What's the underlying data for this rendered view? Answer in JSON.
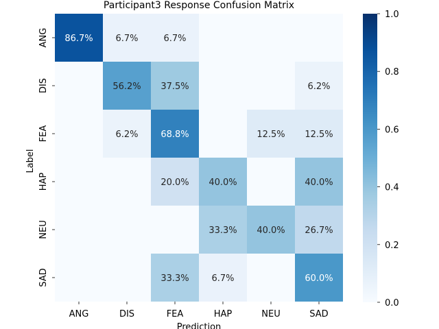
{
  "chart_data": {
    "type": "heatmap",
    "title": "Participant3 Response Confusion Matrix",
    "xlabel": "Prediction",
    "ylabel": "Label",
    "x_categories": [
      "ANG",
      "DIS",
      "FEA",
      "HAP",
      "NEU",
      "SAD"
    ],
    "y_categories": [
      "ANG",
      "DIS",
      "FEA",
      "HAP",
      "NEU",
      "SAD"
    ],
    "values": [
      [
        0.867,
        0.067,
        0.067,
        0.0,
        0.0,
        0.0
      ],
      [
        0.0,
        0.562,
        0.375,
        0.0,
        0.0,
        0.062
      ],
      [
        0.0,
        0.062,
        0.688,
        0.0,
        0.125,
        0.125
      ],
      [
        0.0,
        0.0,
        0.2,
        0.4,
        0.0,
        0.4
      ],
      [
        0.0,
        0.0,
        0.0,
        0.333,
        0.4,
        0.267
      ],
      [
        0.0,
        0.0,
        0.333,
        0.067,
        0.0,
        0.6
      ]
    ],
    "cell_labels": [
      [
        "86.7%",
        "6.7%",
        "6.7%",
        "",
        "",
        ""
      ],
      [
        "",
        "56.2%",
        "37.5%",
        "",
        "",
        "6.2%"
      ],
      [
        "",
        "6.2%",
        "68.8%",
        "",
        "12.5%",
        "12.5%"
      ],
      [
        "",
        "",
        "20.0%",
        "40.0%",
        "",
        "40.0%"
      ],
      [
        "",
        "",
        "",
        "33.3%",
        "40.0%",
        "26.7%"
      ],
      [
        "",
        "",
        "33.3%",
        "6.7%",
        "",
        "60.0%"
      ]
    ],
    "colorbar": {
      "min": 0.0,
      "max": 1.0,
      "ticks": [
        "0.0",
        "0.2",
        "0.4",
        "0.6",
        "0.8",
        "1.0"
      ],
      "colormap": "Blues"
    },
    "grid": false
  }
}
